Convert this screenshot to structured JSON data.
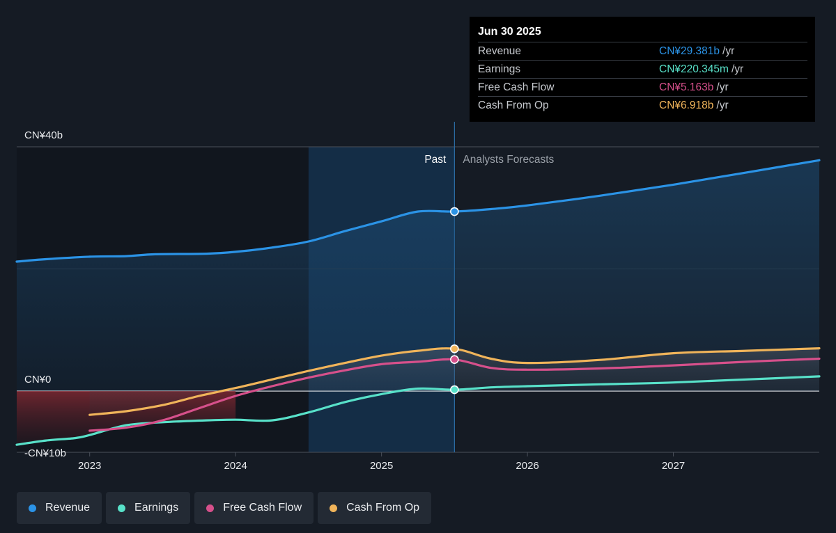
{
  "tooltip": {
    "date": "Jun 30 2025",
    "rows": [
      {
        "label": "Revenue",
        "value": "CN¥29.381b",
        "unit": "/yr",
        "color": "#2b93e6"
      },
      {
        "label": "Earnings",
        "value": "CN¥220.345m",
        "unit": "/yr",
        "color": "#58e1c9"
      },
      {
        "label": "Free Cash Flow",
        "value": "CN¥5.163b",
        "unit": "/yr",
        "color": "#d6508b"
      },
      {
        "label": "Cash From Op",
        "value": "CN¥6.918b",
        "unit": "/yr",
        "color": "#f0b45a"
      }
    ]
  },
  "legend": [
    {
      "label": "Revenue",
      "color": "#2b93e6"
    },
    {
      "label": "Earnings",
      "color": "#58e1c9"
    },
    {
      "label": "Free Cash Flow",
      "color": "#d6508b"
    },
    {
      "label": "Cash From Op",
      "color": "#f0b45a"
    }
  ],
  "chart_data": {
    "type": "line",
    "y_axis": {
      "labels": [
        "CN¥40b",
        "CN¥0",
        "-CN¥10b"
      ],
      "ylim": [
        -10,
        40
      ],
      "unit": "CN¥ billions"
    },
    "x_axis": {
      "ticks": [
        "2023",
        "2024",
        "2025",
        "2026",
        "2027"
      ],
      "xlim": [
        2022.5,
        2028.0
      ]
    },
    "past_label": "Past",
    "forecast_label": "Analysts Forecasts",
    "divider_x": 2025.5,
    "shaded_past_start": 2024.5,
    "series": [
      {
        "name": "Revenue",
        "color": "#2b93e6",
        "x": [
          2022.5,
          2022.7,
          2023.0,
          2023.25,
          2023.45,
          2023.8,
          2024.0,
          2024.25,
          2024.5,
          2024.75,
          2025.0,
          2025.25,
          2025.5,
          2025.75,
          2026.0,
          2026.5,
          2027.0,
          2027.5,
          2028.0
        ],
        "y": [
          21.2,
          21.6,
          22.0,
          22.1,
          22.4,
          22.5,
          22.8,
          23.5,
          24.5,
          26.2,
          27.8,
          29.4,
          29.4,
          29.8,
          30.4,
          32.0,
          33.8,
          35.8,
          37.8
        ]
      },
      {
        "name": "Earnings",
        "color": "#58e1c9",
        "x": [
          2022.5,
          2022.7,
          2022.9,
          2023.0,
          2023.25,
          2023.5,
          2023.8,
          2024.0,
          2024.25,
          2024.5,
          2024.75,
          2025.0,
          2025.25,
          2025.5,
          2025.75,
          2026.0,
          2026.5,
          2027.0,
          2027.5,
          2028.0
        ],
        "y": [
          -8.8,
          -8.1,
          -7.7,
          -7.2,
          -5.6,
          -5.1,
          -4.8,
          -4.7,
          -4.8,
          -3.5,
          -1.8,
          -0.5,
          0.4,
          0.22,
          0.6,
          0.8,
          1.1,
          1.4,
          1.9,
          2.4
        ]
      },
      {
        "name": "Free Cash Flow",
        "color": "#d6508b",
        "x": [
          2023.0,
          2023.25,
          2023.5,
          2023.75,
          2024.0,
          2024.25,
          2024.5,
          2024.75,
          2025.0,
          2025.25,
          2025.5,
          2025.75,
          2026.0,
          2026.5,
          2027.0,
          2027.5,
          2028.0
        ],
        "y": [
          -6.5,
          -6.0,
          -4.8,
          -2.8,
          -0.8,
          0.8,
          2.2,
          3.4,
          4.4,
          4.8,
          5.16,
          3.8,
          3.5,
          3.7,
          4.2,
          4.8,
          5.3
        ]
      },
      {
        "name": "Cash From Op",
        "color": "#f0b45a",
        "x": [
          2023.0,
          2023.25,
          2023.5,
          2023.75,
          2024.0,
          2024.25,
          2024.5,
          2024.75,
          2025.0,
          2025.25,
          2025.5,
          2025.75,
          2026.0,
          2026.5,
          2027.0,
          2027.5,
          2028.0
        ],
        "y": [
          -3.9,
          -3.3,
          -2.3,
          -0.8,
          0.5,
          1.9,
          3.3,
          4.6,
          5.8,
          6.6,
          6.92,
          5.3,
          4.6,
          5.1,
          6.2,
          6.6,
          7.0
        ]
      }
    ]
  }
}
